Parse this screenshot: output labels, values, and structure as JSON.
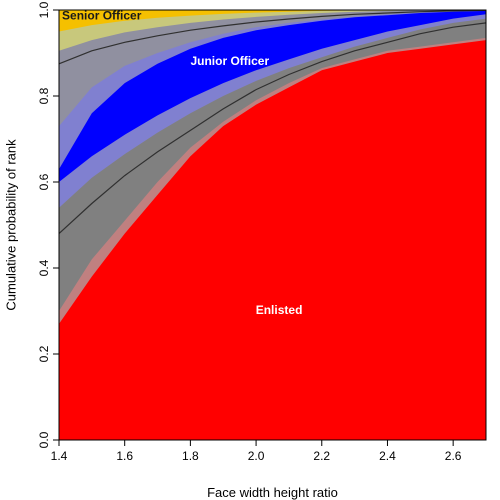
{
  "chart_data": {
    "type": "area",
    "xlabel": "Face width height ratio",
    "ylabel": "Cumulative probability of rank",
    "xlim": [
      1.4,
      2.7
    ],
    "ylim": [
      0,
      1
    ],
    "x_ticks": [
      "1.4",
      "1.6",
      "1.8",
      "2.0",
      "2.2",
      "2.4",
      "2.6"
    ],
    "y_ticks": [
      "0.0",
      "0.2",
      "0.4",
      "0.6",
      "0.8",
      "1.0"
    ],
    "x": [
      1.4,
      1.5,
      1.6,
      1.7,
      1.8,
      1.9,
      2.0,
      2.1,
      2.2,
      2.3,
      2.4,
      2.5,
      2.6,
      2.7
    ],
    "boundaries": [
      {
        "name": "Enlisted / Junior Officer boundary",
        "mean": [
          0.48,
          0.55,
          0.615,
          0.67,
          0.72,
          0.77,
          0.815,
          0.85,
          0.88,
          0.905,
          0.925,
          0.945,
          0.96,
          0.97
        ],
        "inner_lower": [
          0.3,
          0.42,
          0.51,
          0.6,
          0.68,
          0.74,
          0.79,
          0.83,
          0.865,
          0.885,
          0.905,
          0.915,
          0.925,
          0.935
        ],
        "inner_upper": [
          0.54,
          0.61,
          0.665,
          0.715,
          0.76,
          0.8,
          0.835,
          0.865,
          0.89,
          0.915,
          0.935,
          0.955,
          0.97,
          0.98
        ],
        "outer_lower": [
          0.27,
          0.38,
          0.48,
          0.57,
          0.66,
          0.73,
          0.78,
          0.82,
          0.86,
          0.88,
          0.9,
          0.91,
          0.92,
          0.93
        ],
        "outer_upper": [
          0.6,
          0.66,
          0.71,
          0.755,
          0.795,
          0.83,
          0.86,
          0.885,
          0.91,
          0.93,
          0.95,
          0.965,
          0.98,
          0.99
        ]
      },
      {
        "name": "Junior Officer / Senior Officer boundary",
        "mean": [
          0.875,
          0.905,
          0.925,
          0.94,
          0.953,
          0.963,
          0.972,
          0.979,
          0.985,
          0.99,
          0.993,
          0.996,
          0.998,
          0.999
        ],
        "inner_lower": [
          0.73,
          0.82,
          0.87,
          0.9,
          0.925,
          0.945,
          0.96,
          0.97,
          0.978,
          0.985,
          0.99,
          0.994,
          0.997,
          0.998
        ],
        "inner_upper": [
          0.905,
          0.93,
          0.948,
          0.96,
          0.97,
          0.978,
          0.984,
          0.989,
          0.993,
          0.996,
          0.998,
          0.999,
          1.0,
          1.0
        ],
        "outer_lower": [
          0.63,
          0.76,
          0.83,
          0.875,
          0.91,
          0.935,
          0.953,
          0.965,
          0.975,
          0.983,
          0.988,
          0.993,
          0.996,
          0.998
        ],
        "outer_upper": [
          0.95,
          0.965,
          0.975,
          0.982,
          0.987,
          0.991,
          0.994,
          0.996,
          0.998,
          0.999,
          1.0,
          1.0,
          1.0,
          1.0
        ]
      }
    ],
    "regions": [
      {
        "name": "Enlisted",
        "color": "#ff0000",
        "label_x": 2.07,
        "label_y": 0.3
      },
      {
        "name": "Junior Officer",
        "color": "#0000ff",
        "label_x": 1.92,
        "label_y": 0.88
      },
      {
        "name": "Senior Officer",
        "color": "#f5c000",
        "label_x": 1.53,
        "label_y": 0.985
      }
    ],
    "colors": {
      "band_outer_low": "#c08080",
      "band_inner_low": "#808080",
      "band_outer_high": "#c8c87c",
      "band_inner_high": "#9090a0",
      "blue_band": "#8080d0",
      "line": "#303030"
    },
    "grid": false
  }
}
